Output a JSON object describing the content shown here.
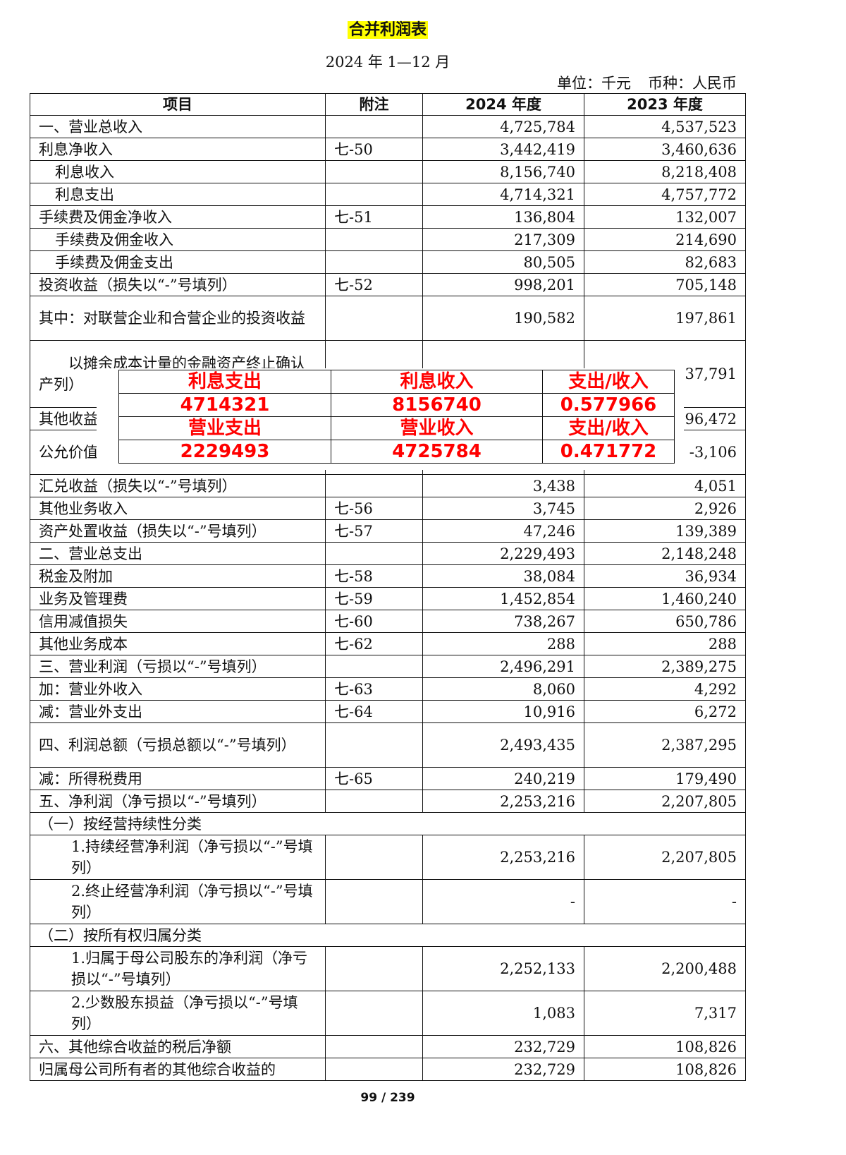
{
  "title": "合并利润表",
  "period": "2024 年 1—12 月",
  "unit": "单位：千元",
  "currency": "币种：人民币",
  "headers": {
    "item": "项目",
    "note": "附注",
    "y2024": "2024 年度",
    "y2023": "2023 年度"
  },
  "rows": [
    {
      "item": "一、营业总收入",
      "note": "",
      "y2024": "4,725,784",
      "y2023": "4,537,523",
      "h": 1,
      "indent": 0
    },
    {
      "item": "利息净收入",
      "note": "七-50",
      "y2024": "3,442,419",
      "y2023": "3,460,636",
      "h": 1,
      "indent": 0
    },
    {
      "item": "利息收入",
      "note": "",
      "y2024": "8,156,740",
      "y2023": "8,218,408",
      "h": 1,
      "indent": 1
    },
    {
      "item": "利息支出",
      "note": "",
      "y2024": "4,714,321",
      "y2023": "4,757,772",
      "h": 1,
      "indent": 1
    },
    {
      "item": "手续费及佣金净收入",
      "note": "七-51",
      "y2024": "136,804",
      "y2023": "132,007",
      "h": 1,
      "indent": 0
    },
    {
      "item": "手续费及佣金收入",
      "note": "",
      "y2024": "217,309",
      "y2023": "214,690",
      "h": 1,
      "indent": 1
    },
    {
      "item": "手续费及佣金支出",
      "note": "",
      "y2024": "80,505",
      "y2023": "82,683",
      "h": 1,
      "indent": 1
    },
    {
      "item": "投资收益（损失以“-”号填列）",
      "note": "七-52",
      "y2024": "998,201",
      "y2023": "705,148",
      "h": 1,
      "indent": 0
    },
    {
      "item": "其中：对联营企业和合营企业的投资收益",
      "note": "",
      "y2024": "190,582",
      "y2023": "197,861",
      "h": 2,
      "indent": 0
    },
    {
      "item": "　　以摊余成本计量的金融资产终止确认产列）",
      "note": "",
      "y2024": "",
      "y2023": "37,791",
      "h": 3,
      "indent": 0
    },
    {
      "item": "其他收益",
      "note": "",
      "y2024": "",
      "y2023": "96,472",
      "h": 1,
      "indent": 0
    },
    {
      "item": "公允价值列）",
      "note": "",
      "y2024": "",
      "y2023": "-3,106",
      "h": 2,
      "indent": 0
    },
    {
      "item": "汇兑收益（损失以“-”号填列）",
      "note": "",
      "y2024": "3,438",
      "y2023": "4,051",
      "h": 1,
      "indent": 0
    },
    {
      "item": "其他业务收入",
      "note": "七-56",
      "y2024": "3,745",
      "y2023": "2,926",
      "h": 1,
      "indent": 0
    },
    {
      "item": "资产处置收益（损失以“-”号填列）",
      "note": "七-57",
      "y2024": "47,246",
      "y2023": "139,389",
      "h": 1,
      "indent": 0
    },
    {
      "item": "二、营业总支出",
      "note": "",
      "y2024": "2,229,493",
      "y2023": "2,148,248",
      "h": 1,
      "indent": 0
    },
    {
      "item": "税金及附加",
      "note": "七-58",
      "y2024": "38,084",
      "y2023": "36,934",
      "h": 1,
      "indent": 0
    },
    {
      "item": "业务及管理费",
      "note": "七-59",
      "y2024": "1,452,854",
      "y2023": "1,460,240",
      "h": 1,
      "indent": 0
    },
    {
      "item": "信用减值损失",
      "note": "七-60",
      "y2024": "738,267",
      "y2023": "650,786",
      "h": 1,
      "indent": 0
    },
    {
      "item": "其他业务成本",
      "note": "七-62",
      "y2024": "288",
      "y2023": "288",
      "h": 1,
      "indent": 0
    },
    {
      "item": "三、营业利润（亏损以“-”号填列）",
      "note": "",
      "y2024": "2,496,291",
      "y2023": "2,389,275",
      "h": 1,
      "indent": 0
    },
    {
      "item": "加：营业外收入",
      "note": "七-63",
      "y2024": "8,060",
      "y2023": "4,292",
      "h": 1,
      "indent": 0
    },
    {
      "item": "减：营业外支出",
      "note": "七-64",
      "y2024": "10,916",
      "y2023": "6,272",
      "h": 1,
      "indent": 0
    },
    {
      "item": "四、利润总额（亏损总额以“-”号填列）",
      "note": "",
      "y2024": "2,493,435",
      "y2023": "2,387,295",
      "h": 2,
      "indent": 0
    },
    {
      "item": "减：所得税费用",
      "note": "七-65",
      "y2024": "240,219",
      "y2023": "179,490",
      "h": 1,
      "indent": 0
    },
    {
      "item": "五、净利润（净亏损以“-”号填列）",
      "note": "",
      "y2024": "2,253,216",
      "y2023": "2,207,805",
      "h": 1,
      "indent": 0
    },
    {
      "item": "（一）按经营持续性分类",
      "span": true,
      "h": 1,
      "indent": 0
    },
    {
      "item": "1.持续经营净利润（净亏损以“-”号填列）",
      "note": "",
      "y2024": "2,253,216",
      "y2023": "2,207,805",
      "h": 2,
      "indent": 2
    },
    {
      "item": "2.终止经营净利润（净亏损以“-”号填列）",
      "note": "",
      "y2024": "-",
      "y2023": "-",
      "h": 2,
      "indent": 2
    },
    {
      "item": "（二）按所有权归属分类",
      "span": true,
      "h": 1,
      "indent": 0
    },
    {
      "item": "1.归属于母公司股东的净利润（净亏损以“-”号填列）",
      "note": "",
      "y2024": "2,252,133",
      "y2023": "2,200,488",
      "h": 2,
      "indent": 2
    },
    {
      "item": "2.少数股东损益（净亏损以“-”号填列）",
      "note": "",
      "y2024": "1,083",
      "y2023": "7,317",
      "h": 2,
      "indent": 2
    },
    {
      "item": "六、其他综合收益的税后净额",
      "note": "",
      "y2024": "232,729",
      "y2023": "108,826",
      "h": 1,
      "indent": 0
    },
    {
      "item": "归属母公司所有者的其他综合收益的",
      "note": "",
      "y2024": "232,729",
      "y2023": "108,826",
      "h": 1,
      "indent": 0
    }
  ],
  "overlay": {
    "rows": [
      [
        "利息支出",
        "利息收入",
        "支出/收入"
      ],
      [
        "4714321",
        "8156740",
        "0.577966"
      ],
      [
        "营业支出",
        "营业收入",
        "支出/收入"
      ],
      [
        "2229493",
        "4725784",
        "0.471772"
      ]
    ],
    "color": "#ff0000"
  },
  "footer": "99 / 239"
}
